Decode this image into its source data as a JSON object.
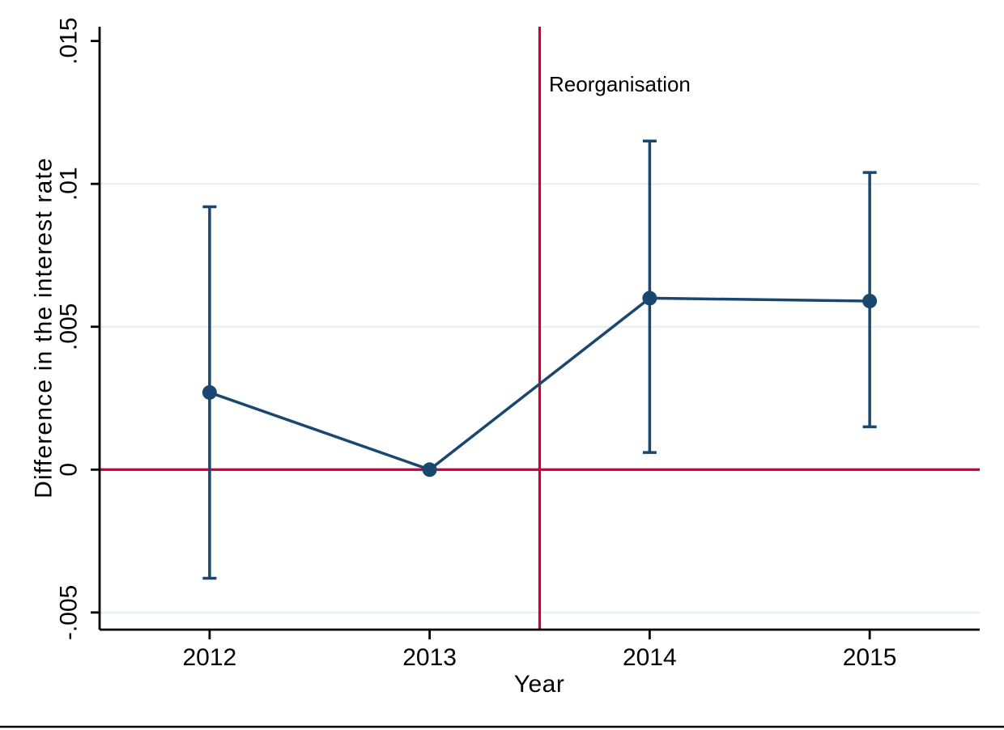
{
  "chart_data": {
    "type": "line",
    "title": "",
    "xlabel": "Year",
    "ylabel": "Difference in the interest rate",
    "x": [
      2012,
      2013,
      2014,
      2015
    ],
    "xtick_labels": [
      "2012",
      "2013",
      "2014",
      "2015"
    ],
    "yticks": [
      -0.005,
      0,
      0.005,
      0.01,
      0.015
    ],
    "ytick_labels": [
      "-.005",
      "0",
      ".005",
      ".01",
      ".015"
    ],
    "grid_yticks": [
      -0.005,
      0.005,
      0.01
    ],
    "xlim": [
      2011.5,
      2015.5
    ],
    "ylim": [
      -0.0056,
      0.0155
    ],
    "grid": true,
    "legend_position": "none",
    "series": [
      {
        "name": "Difference in the interest rate",
        "values": [
          0.0027,
          0,
          0.006,
          0.0059
        ],
        "ci_low": [
          -0.0038,
          null,
          0.0006,
          0.0015
        ],
        "ci_high": [
          0.0092,
          null,
          0.0115,
          0.0104
        ]
      }
    ],
    "annotations": [
      {
        "type": "vline",
        "x": 2013.5,
        "label": "Reorganisation"
      },
      {
        "type": "hline",
        "y": 0
      }
    ],
    "colors": {
      "series": "#1A476F",
      "reference": "#C10536",
      "gridline": "#E9F0F3",
      "axis": "#000000"
    }
  }
}
